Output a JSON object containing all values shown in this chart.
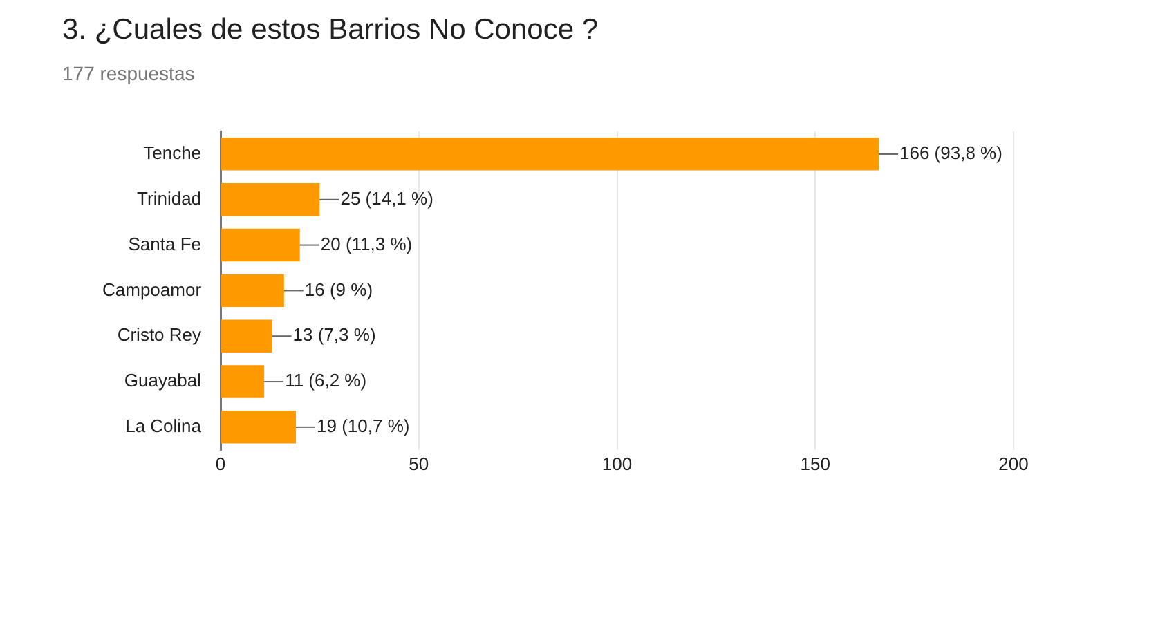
{
  "chart_data": {
    "type": "bar",
    "title": "3. ¿Cuales de estos Barrios No Conoce ?",
    "subtitle": "177 respuestas",
    "orientation": "horizontal",
    "categories": [
      "Tenche",
      "Trinidad",
      "Santa Fe",
      "Campoamor",
      "Cristo Rey",
      "Guayabal",
      "La Colina"
    ],
    "values": [
      166,
      25,
      20,
      16,
      13,
      11,
      19
    ],
    "value_labels": [
      "166 (93,8 %)",
      "25 (14,1 %)",
      "20 (11,3 %)",
      "16 (9 %)",
      "13 (7,3 %)",
      "11 (6,2 %)",
      "19 (10,7 %)"
    ],
    "color": "#ff9900",
    "xlim": [
      0,
      200
    ],
    "xticks": [
      0,
      50,
      100,
      150,
      200
    ],
    "grid": "x",
    "legend": false
  }
}
